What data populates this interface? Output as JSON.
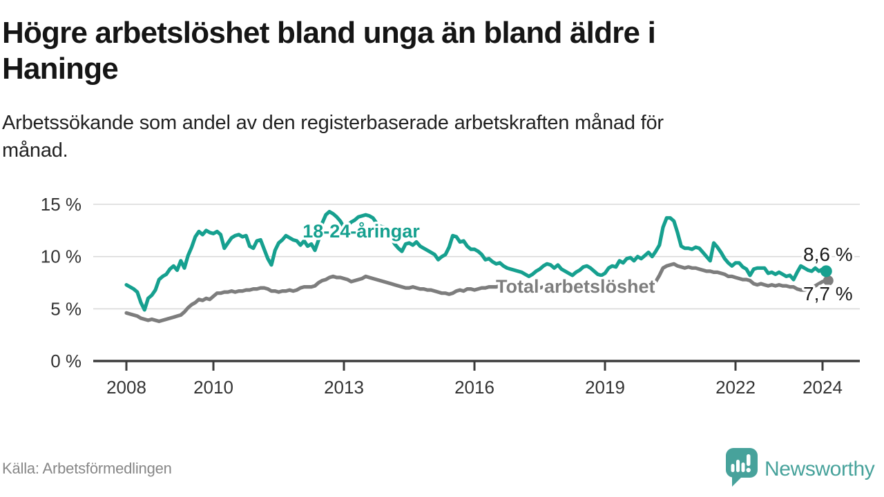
{
  "header": {
    "title_line1": "Högre arbetslöshet bland unga än bland äldre i",
    "title_line2": "Haninge",
    "subtitle_line1": "Arbetssökande som andel av den registerbaserade arbetskraften månad för",
    "subtitle_line2": "månad."
  },
  "footer": {
    "source": "Källa: Arbetsförmedlingen",
    "brand": "Newsworthy",
    "brand_color": "#47a29b",
    "logo_icon": "speech-bubble-bar-chart-icon"
  },
  "colors": {
    "youth_line": "#16a08f",
    "total_line": "#7d7d7d",
    "grid": "#d9d9d9",
    "axis": "#3c3c3c",
    "tick_label": "#333333",
    "end_label": "#1a1a1a",
    "halo": "#ffffff"
  },
  "chart_data": {
    "type": "line",
    "title": "Högre arbetslöshet bland unga än bland äldre i Haninge",
    "subtitle": "Arbetssökande som andel av den registerbaserade arbetskraften månad för månad.",
    "x_unit": "month",
    "x_start": "2008-01",
    "x_end": "2024-02",
    "ylim": [
      0,
      15.5
    ],
    "grid": "horizontal",
    "legend_position": "inline-labels",
    "y_ticks": [
      {
        "label": "0 %",
        "value": 0
      },
      {
        "label": "5 %",
        "value": 5
      },
      {
        "label": "10 %",
        "value": 10
      },
      {
        "label": "15 %",
        "value": 15
      }
    ],
    "x_ticks": [
      {
        "label": "2008",
        "year": 2008
      },
      {
        "label": "2010",
        "year": 2010
      },
      {
        "label": "2013",
        "year": 2013
      },
      {
        "label": "2016",
        "year": 2016
      },
      {
        "label": "2019",
        "year": 2019
      },
      {
        "label": "2022",
        "year": 2022
      },
      {
        "label": "2024",
        "year": 2024
      }
    ],
    "series": [
      {
        "name": "18-24-åringar",
        "color": "#16a08f",
        "end_label": "8,6 %",
        "end_value": 8.6,
        "values": [
          7.3,
          7.1,
          6.9,
          6.6,
          5.6,
          4.9,
          6.0,
          6.3,
          6.8,
          7.8,
          8.1,
          8.3,
          8.8,
          9.1,
          8.7,
          9.6,
          8.9,
          10.1,
          10.9,
          11.9,
          12.4,
          12.1,
          12.5,
          12.3,
          12.2,
          12.4,
          12.1,
          10.8,
          11.3,
          11.8,
          12.0,
          12.1,
          11.9,
          12.0,
          11.0,
          10.8,
          11.5,
          11.6,
          10.7,
          9.8,
          9.2,
          10.6,
          11.3,
          11.6,
          12.0,
          11.8,
          11.6,
          11.5,
          11.1,
          11.5,
          11.0,
          11.2,
          10.6,
          11.6,
          13.2,
          14.0,
          14.3,
          14.1,
          13.8,
          13.4,
          12.8,
          13.0,
          13.3,
          13.5,
          13.8,
          13.9,
          14.0,
          13.9,
          13.7,
          13.2,
          12.9,
          12.8,
          12.3,
          11.8,
          11.2,
          10.8,
          10.5,
          11.2,
          11.3,
          11.1,
          11.4,
          11.0,
          10.8,
          10.6,
          10.4,
          10.2,
          9.7,
          10.0,
          10.2,
          10.9,
          12.0,
          11.9,
          11.4,
          11.5,
          11.0,
          10.7,
          10.7,
          10.5,
          10.2,
          9.7,
          9.8,
          9.5,
          9.3,
          9.4,
          9.1,
          8.9,
          8.8,
          8.7,
          8.6,
          8.5,
          8.3,
          8.1,
          8.3,
          8.6,
          8.8,
          9.1,
          9.3,
          9.2,
          8.9,
          9.2,
          8.8,
          8.6,
          8.4,
          8.2,
          8.5,
          8.7,
          9.0,
          9.1,
          8.9,
          8.6,
          8.3,
          8.2,
          8.4,
          8.9,
          9.1,
          9.0,
          9.6,
          9.4,
          9.8,
          9.9,
          9.6,
          10.0,
          9.8,
          10.1,
          10.4,
          10.0,
          10.5,
          11.1,
          12.8,
          13.7,
          13.7,
          13.4,
          12.3,
          11.0,
          10.8,
          10.8,
          10.7,
          10.9,
          10.8,
          10.4,
          10.0,
          9.6,
          11.3,
          10.9,
          10.4,
          9.8,
          9.4,
          9.1,
          9.4,
          9.4,
          9.0,
          8.8,
          8.2,
          8.8,
          8.9,
          8.9,
          8.9,
          8.4,
          8.5,
          8.3,
          8.5,
          8.3,
          8.1,
          8.2,
          7.8,
          8.5,
          9.1,
          8.9,
          8.7,
          8.6,
          8.9,
          8.6,
          8.8,
          8.6
        ]
      },
      {
        "name": "Total arbetslöshet",
        "color": "#7d7d7d",
        "end_label": "7,7 %",
        "end_value": 7.7,
        "values": [
          4.6,
          4.5,
          4.4,
          4.3,
          4.1,
          4.0,
          3.9,
          4.0,
          3.9,
          3.8,
          3.9,
          4.0,
          4.1,
          4.2,
          4.3,
          4.4,
          4.7,
          5.1,
          5.4,
          5.6,
          5.9,
          5.8,
          6.0,
          5.9,
          6.2,
          6.5,
          6.5,
          6.6,
          6.6,
          6.7,
          6.6,
          6.7,
          6.7,
          6.8,
          6.8,
          6.9,
          6.9,
          7.0,
          7.0,
          6.9,
          6.7,
          6.7,
          6.6,
          6.7,
          6.7,
          6.8,
          6.7,
          6.8,
          7.0,
          7.1,
          7.1,
          7.1,
          7.2,
          7.5,
          7.7,
          7.8,
          8.0,
          8.1,
          8.0,
          8.0,
          7.9,
          7.8,
          7.6,
          7.7,
          7.8,
          7.9,
          8.1,
          8.0,
          7.9,
          7.8,
          7.7,
          7.6,
          7.5,
          7.4,
          7.3,
          7.2,
          7.1,
          7.0,
          7.0,
          7.1,
          7.0,
          6.9,
          6.9,
          6.8,
          6.8,
          6.7,
          6.6,
          6.5,
          6.5,
          6.4,
          6.5,
          6.7,
          6.8,
          6.7,
          6.9,
          6.9,
          6.8,
          6.9,
          7.0,
          7.0,
          7.1,
          7.1,
          7.1,
          7.2,
          7.1,
          7.2,
          7.1,
          7.2,
          7.2,
          7.1,
          7.1,
          7.0,
          7.1,
          7.1,
          7.0,
          7.1,
          7.0,
          7.1,
          7.0,
          7.0,
          6.9,
          6.9,
          6.8,
          6.8,
          6.9,
          6.9,
          6.8,
          6.9,
          6.8,
          6.8,
          6.7,
          6.8,
          6.8,
          6.9,
          6.9,
          6.8,
          6.9,
          7.0,
          7.0,
          7.1,
          7.0,
          7.1,
          7.1,
          7.2,
          7.2,
          7.3,
          7.6,
          8.2,
          8.9,
          9.1,
          9.2,
          9.3,
          9.1,
          9.0,
          8.9,
          9.0,
          8.9,
          8.9,
          8.8,
          8.7,
          8.6,
          8.6,
          8.5,
          8.5,
          8.4,
          8.3,
          8.1,
          8.1,
          8.0,
          7.9,
          7.8,
          7.8,
          7.7,
          7.4,
          7.3,
          7.4,
          7.3,
          7.2,
          7.3,
          7.2,
          7.3,
          7.2,
          7.2,
          7.1,
          7.1,
          6.9,
          6.8,
          6.8,
          6.9,
          7.0,
          7.2,
          7.4,
          7.6,
          7.7
        ]
      }
    ]
  }
}
